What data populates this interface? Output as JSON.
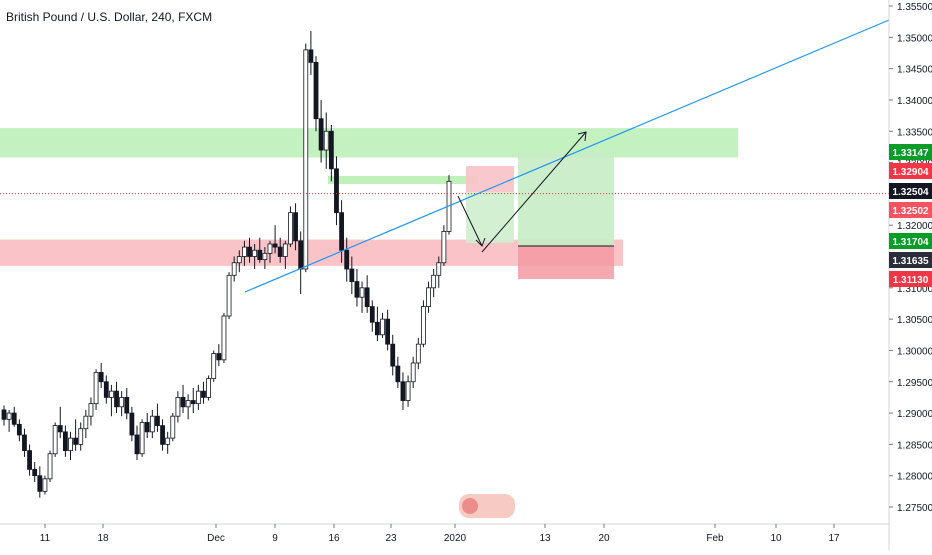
{
  "header": {
    "title": "British Pound / U.S. Dollar, 240, FXCM"
  },
  "colors": {
    "bull": "#131722",
    "bear": "#131722",
    "wick": "#131722",
    "support_zone": "#f8b8bd",
    "resistance_zone": "#b9efb4",
    "trendline": "#2196f3",
    "price_line": "#e53935",
    "axis_text": "#131722",
    "grid": "#ffffff"
  },
  "chart_data": {
    "type": "candlestick",
    "title": "British Pound / U.S. Dollar, 240, FXCM",
    "symbol": "GBPUSD",
    "timeframe": "240",
    "y_axis": {
      "ticks": [
        "1.35500",
        "1.35000",
        "1.34500",
        "1.34000",
        "1.33500",
        "1.33000",
        "1.32500",
        "1.32000",
        "1.31500",
        "1.31000",
        "1.30500",
        "1.30000",
        "1.29500",
        "1.29000",
        "1.28500",
        "1.28000",
        "1.27500"
      ],
      "range": [
        1.2733,
        1.3565
      ]
    },
    "x_axis": {
      "ticks": [
        "11",
        "18",
        "Dec",
        "9",
        "16",
        "23",
        "2020",
        "13",
        "20",
        "Feb",
        "10",
        "17"
      ]
    },
    "price_labels": [
      {
        "text": "1.33147",
        "color": "#26a69a",
        "bg": "#0a9c28"
      },
      {
        "text": "1.32904",
        "color": "#ffffff",
        "bg": "#f23645"
      },
      {
        "text": "1.32504",
        "color": "#ffffff",
        "bg": "#131722"
      },
      {
        "text": "1.32502",
        "color": "#ffffff",
        "bg": "#f7525f"
      },
      {
        "text": "1.31704",
        "color": "#ffffff",
        "bg": "#0a9c28"
      },
      {
        "text": "1.31635",
        "color": "#ffffff",
        "bg": "#2a2e39"
      },
      {
        "text": "1.31130",
        "color": "#ffffff",
        "bg": "#f23645"
      }
    ],
    "zones": [
      {
        "name": "resistance",
        "top": 1.3355,
        "bottom": 1.3308,
        "kind": "green"
      },
      {
        "name": "support",
        "top": 1.3177,
        "bottom": 1.3135,
        "kind": "red"
      }
    ],
    "candles": [
      [
        1.2905,
        1.2912,
        1.288,
        1.289
      ],
      [
        1.289,
        1.2905,
        1.287,
        1.29
      ],
      [
        1.29,
        1.291,
        1.2878,
        1.2882
      ],
      [
        1.2882,
        1.289,
        1.2855,
        1.2865
      ],
      [
        1.2865,
        1.2875,
        1.283,
        1.284
      ],
      [
        1.284,
        1.285,
        1.28,
        1.281
      ],
      [
        1.281,
        1.2822,
        1.279,
        1.28
      ],
      [
        1.28,
        1.2815,
        1.2765,
        1.2775
      ],
      [
        1.2775,
        1.28,
        1.277,
        1.2795
      ],
      [
        1.2795,
        1.284,
        1.279,
        1.2835
      ],
      [
        1.2835,
        1.2885,
        1.283,
        1.288
      ],
      [
        1.288,
        1.291,
        1.286,
        1.287
      ],
      [
        1.287,
        1.288,
        1.283,
        1.284
      ],
      [
        1.284,
        1.287,
        1.2825,
        1.286
      ],
      [
        1.286,
        1.289,
        1.284,
        1.285
      ],
      [
        1.285,
        1.2885,
        1.284,
        1.2875
      ],
      [
        1.2875,
        1.2905,
        1.286,
        1.2895
      ],
      [
        1.2895,
        1.2925,
        1.288,
        1.2915
      ],
      [
        1.2915,
        1.297,
        1.2905,
        1.2965
      ],
      [
        1.2965,
        1.298,
        1.294,
        1.295
      ],
      [
        1.295,
        1.296,
        1.2915,
        1.2925
      ],
      [
        1.2925,
        1.2945,
        1.2895,
        1.2935
      ],
      [
        1.2935,
        1.295,
        1.29,
        1.291
      ],
      [
        1.291,
        1.2935,
        1.2895,
        1.2925
      ],
      [
        1.2925,
        1.294,
        1.289,
        1.29
      ],
      [
        1.29,
        1.291,
        1.2855,
        1.2865
      ],
      [
        1.2865,
        1.288,
        1.2825,
        1.2835
      ],
      [
        1.2835,
        1.289,
        1.283,
        1.2885
      ],
      [
        1.2885,
        1.29,
        1.286,
        1.287
      ],
      [
        1.287,
        1.2905,
        1.286,
        1.2895
      ],
      [
        1.2895,
        1.2915,
        1.287,
        1.288
      ],
      [
        1.288,
        1.289,
        1.284,
        1.285
      ],
      [
        1.285,
        1.287,
        1.2835,
        1.286
      ],
      [
        1.286,
        1.29,
        1.2855,
        1.2895
      ],
      [
        1.2895,
        1.2935,
        1.2885,
        1.2925
      ],
      [
        1.2925,
        1.2945,
        1.29,
        1.291
      ],
      [
        1.291,
        1.293,
        1.289,
        1.292
      ],
      [
        1.292,
        1.294,
        1.29,
        1.2915
      ],
      [
        1.2915,
        1.2945,
        1.2905,
        1.2935
      ],
      [
        1.2935,
        1.295,
        1.2915,
        1.2925
      ],
      [
        1.2925,
        1.296,
        1.292,
        1.2955
      ],
      [
        1.2955,
        1.3,
        1.295,
        1.2995
      ],
      [
        1.2995,
        1.301,
        1.2975,
        1.2985
      ],
      [
        1.2985,
        1.306,
        1.298,
        1.3055
      ],
      [
        1.3055,
        1.3125,
        1.305,
        1.312
      ],
      [
        1.312,
        1.315,
        1.311,
        1.314
      ],
      [
        1.314,
        1.316,
        1.3125,
        1.315
      ],
      [
        1.315,
        1.3175,
        1.3135,
        1.3165
      ],
      [
        1.3165,
        1.318,
        1.314,
        1.315
      ],
      [
        1.315,
        1.317,
        1.313,
        1.316
      ],
      [
        1.316,
        1.318,
        1.314,
        1.3145
      ],
      [
        1.3145,
        1.3165,
        1.313,
        1.3155
      ],
      [
        1.3155,
        1.3175,
        1.314,
        1.317
      ],
      [
        1.317,
        1.32,
        1.3155,
        1.3165
      ],
      [
        1.3165,
        1.318,
        1.314,
        1.315
      ],
      [
        1.315,
        1.3175,
        1.313,
        1.317
      ],
      [
        1.317,
        1.323,
        1.3165,
        1.322
      ],
      [
        1.322,
        1.3235,
        1.316,
        1.3175
      ],
      [
        1.3175,
        1.319,
        1.309,
        1.313
      ],
      [
        1.313,
        1.349,
        1.3125,
        1.348
      ],
      [
        1.348,
        1.351,
        1.344,
        1.346
      ],
      [
        1.346,
        1.347,
        1.335,
        1.337
      ],
      [
        1.337,
        1.34,
        1.33,
        1.332
      ],
      [
        1.332,
        1.338,
        1.329,
        1.335
      ],
      [
        1.335,
        1.336,
        1.327,
        1.329
      ],
      [
        1.329,
        1.331,
        1.32,
        1.322
      ],
      [
        1.322,
        1.324,
        1.314,
        1.316
      ],
      [
        1.316,
        1.318,
        1.311,
        1.313
      ],
      [
        1.313,
        1.315,
        1.309,
        1.311
      ],
      [
        1.311,
        1.313,
        1.307,
        1.3085
      ],
      [
        1.3085,
        1.311,
        1.306,
        1.31
      ],
      [
        1.31,
        1.312,
        1.306,
        1.307
      ],
      [
        1.307,
        1.308,
        1.303,
        1.3045
      ],
      [
        1.3045,
        1.307,
        1.3015,
        1.3025
      ],
      [
        1.3025,
        1.306,
        1.302,
        1.305
      ],
      [
        1.305,
        1.3065,
        1.3,
        1.301
      ],
      [
        1.301,
        1.3025,
        1.296,
        1.2975
      ],
      [
        1.2975,
        1.299,
        1.294,
        1.295
      ],
      [
        1.295,
        1.2965,
        1.2905,
        1.292
      ],
      [
        1.292,
        1.296,
        1.291,
        1.295
      ],
      [
        1.295,
        1.299,
        1.294,
        1.298
      ],
      [
        1.298,
        1.302,
        1.297,
        1.301
      ],
      [
        1.301,
        1.308,
        1.3005,
        1.307
      ],
      [
        1.307,
        1.311,
        1.306,
        1.31
      ],
      [
        1.31,
        1.313,
        1.3085,
        1.312
      ],
      [
        1.312,
        1.315,
        1.31,
        1.314
      ],
      [
        1.314,
        1.32,
        1.3135,
        1.319
      ],
      [
        1.319,
        1.328,
        1.3185,
        1.327
      ]
    ]
  }
}
